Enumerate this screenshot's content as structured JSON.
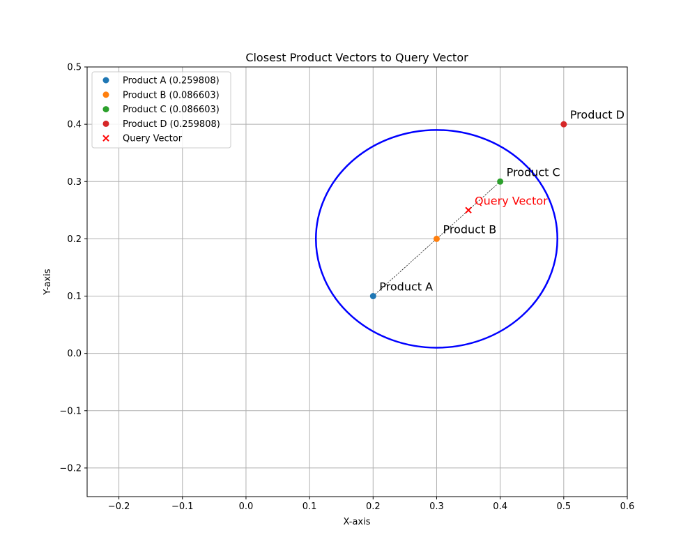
{
  "chart_data": {
    "type": "scatter",
    "title": "Closest Product Vectors to Query Vector",
    "xlabel": "X-axis",
    "ylabel": "Y-axis",
    "xlim": [
      -0.25,
      0.6
    ],
    "ylim": [
      -0.25,
      0.5
    ],
    "xticks": [
      -0.2,
      -0.1,
      0.0,
      0.1,
      0.2,
      0.3,
      0.4,
      0.5,
      0.6
    ],
    "yticks": [
      -0.2,
      -0.1,
      0.0,
      0.1,
      0.2,
      0.3,
      0.4,
      0.5
    ],
    "xtick_labels": [
      "−0.2",
      "−0.1",
      "0.0",
      "0.1",
      "0.2",
      "0.3",
      "0.4",
      "0.5",
      "0.6"
    ],
    "ytick_labels": [
      "−0.2",
      "−0.1",
      "0.0",
      "0.1",
      "0.2",
      "0.3",
      "0.4",
      "0.5"
    ],
    "grid": true,
    "legend_position": "top-left",
    "series": [
      {
        "name": "Product A (0.259808)",
        "label": "Product A",
        "x": 0.2,
        "y": 0.1,
        "color": "#1f77b4",
        "marker": "circle"
      },
      {
        "name": "Product B (0.086603)",
        "label": "Product B",
        "x": 0.3,
        "y": 0.2,
        "color": "#ff7f0e",
        "marker": "circle"
      },
      {
        "name": "Product C (0.086603)",
        "label": "Product C",
        "x": 0.4,
        "y": 0.3,
        "color": "#2ca02c",
        "marker": "circle"
      },
      {
        "name": "Product D (0.259808)",
        "label": "Product D",
        "x": 0.5,
        "y": 0.4,
        "color": "#d62728",
        "marker": "circle"
      },
      {
        "name": "Query Vector",
        "label": "Query Vector",
        "x": 0.35,
        "y": 0.25,
        "color": "#ff0000",
        "marker": "x"
      }
    ],
    "connector_line": {
      "from": [
        0.2,
        0.1
      ],
      "to": [
        0.4,
        0.3
      ],
      "style": "dashed",
      "color": "#000000"
    },
    "circle": {
      "center": [
        0.3,
        0.2
      ],
      "radius": 0.19,
      "color": "#0000ff"
    }
  }
}
